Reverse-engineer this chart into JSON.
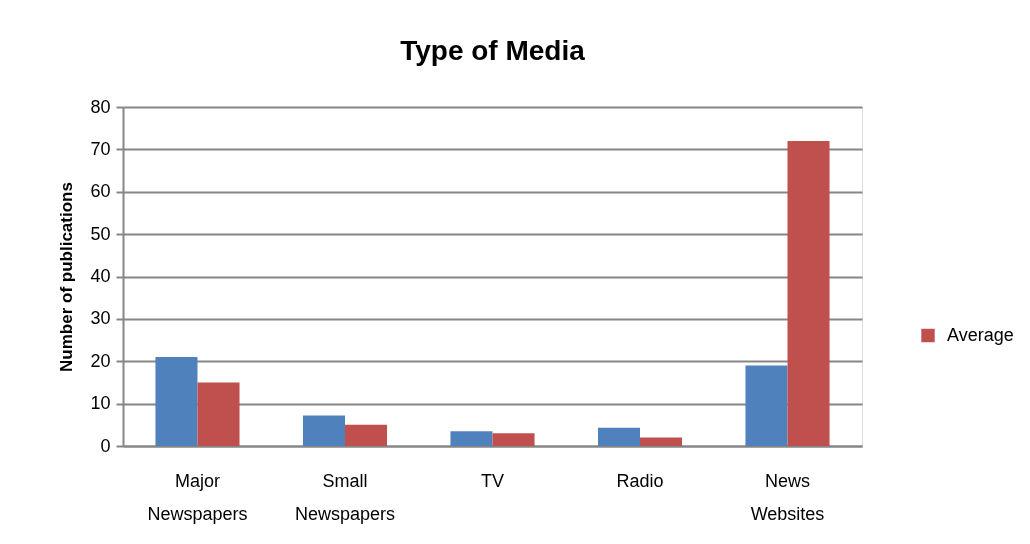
{
  "chart_data": {
    "type": "bar",
    "title": "Type of Media",
    "ylabel": "Number of publications",
    "categories": [
      "Major Newspapers",
      "Small Newspapers",
      "TV",
      "Radio",
      "News Websites"
    ],
    "series": [
      {
        "color": "#4f81bd",
        "values": [
          21,
          7.2,
          3.5,
          4.3,
          19
        ]
      },
      {
        "name": "Average",
        "color": "#c0504d",
        "values": [
          15,
          5,
          3,
          2,
          72
        ]
      }
    ],
    "ylim": [
      0,
      80
    ],
    "yticks": [
      0,
      10,
      20,
      30,
      40,
      50,
      60,
      70,
      80
    ],
    "grid": "y",
    "legend": "right"
  }
}
